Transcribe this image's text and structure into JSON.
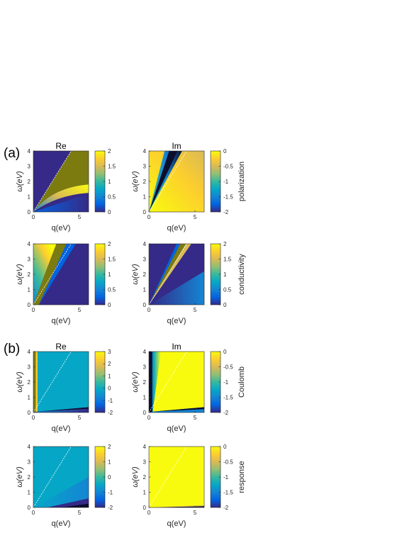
{
  "figure": {
    "panel_a_label": "(a)",
    "panel_b_label": "(b)",
    "column_titles": {
      "a_re": "Re",
      "a_im": "Im",
      "b_re": "Re",
      "b_im": "Im"
    },
    "row_labels": {
      "polarization": "polarization",
      "conductivity": "conductivity",
      "coulomb": "Coulomb",
      "response": "response"
    }
  },
  "colors": {
    "parula": [
      "#352a87",
      "#0363e1",
      "#1485d4",
      "#06a7c6",
      "#38b99e",
      "#92bf73",
      "#d9ba56",
      "#fcce2e",
      "#f9fb0e"
    ],
    "overflow_high": "#7b7b10",
    "overflow_low": "#0d0d2e",
    "light_line": "#ffffff"
  },
  "chart_data": [
    {
      "id": "a-re-polarization",
      "type": "heatmap",
      "title": "Re",
      "xlabel": "q(eV)",
      "ylabel": "ω(eV)",
      "xlim": [
        0,
        6
      ],
      "ylim": [
        0,
        4
      ],
      "xticks": [
        "0",
        "5"
      ],
      "yticks": [
        "0",
        "1",
        "2",
        "3",
        "4"
      ],
      "colorbar": {
        "ticks": [
          "0",
          "0.5",
          "1",
          "1.5",
          "2"
        ],
        "clim": [
          0,
          2
        ]
      }
    },
    {
      "id": "a-im-polarization",
      "type": "heatmap",
      "title": "Im",
      "xlabel": "q(eV)",
      "ylabel": "ω(eV)",
      "xlim": [
        0,
        6
      ],
      "ylim": [
        0,
        4
      ],
      "xticks": [
        "0",
        "5"
      ],
      "yticks": [
        "0",
        "1",
        "2",
        "3",
        "4"
      ],
      "colorbar": {
        "ticks": [
          "0",
          "-0.5",
          "-1",
          "-1.5",
          "-2"
        ],
        "clim": [
          -2,
          0
        ],
        "label": "polarization"
      }
    },
    {
      "id": "a-re-conductivity",
      "type": "heatmap",
      "xlabel": "q(eV)",
      "ylabel": "ω(eV)",
      "xlim": [
        0,
        6
      ],
      "ylim": [
        0,
        4
      ],
      "xticks": [
        "0",
        "5"
      ],
      "yticks": [
        "0",
        "1",
        "2",
        "3",
        "4"
      ],
      "colorbar": {
        "ticks": [
          "0",
          "0.5",
          "1",
          "1.5",
          "2"
        ],
        "clim": [
          0,
          2
        ]
      }
    },
    {
      "id": "a-im-conductivity",
      "type": "heatmap",
      "xlabel": "q(eV)",
      "ylabel": "ω(eV)",
      "xlim": [
        0,
        6
      ],
      "ylim": [
        0,
        4
      ],
      "xticks": [
        "0",
        "5"
      ],
      "yticks": [
        "0",
        "1",
        "2",
        "3",
        "4"
      ],
      "colorbar": {
        "ticks": [
          "0",
          "0.5",
          "1",
          "1.5",
          "2"
        ],
        "clim": [
          0,
          2
        ],
        "label": "conductivity"
      }
    },
    {
      "id": "b-re-coulomb",
      "type": "heatmap",
      "title": "Re",
      "xlabel": "q(eV)",
      "ylabel": "ω(eV)",
      "xlim": [
        0,
        6
      ],
      "ylim": [
        0,
        4
      ],
      "xticks": [
        "0",
        "5"
      ],
      "yticks": [
        "0",
        "1",
        "2",
        "3",
        "4"
      ],
      "colorbar": {
        "ticks": [
          "-2",
          "-1",
          "0",
          "1",
          "2",
          "3"
        ],
        "clim": [
          -2,
          3
        ]
      }
    },
    {
      "id": "b-im-coulomb",
      "type": "heatmap",
      "title": "Im",
      "xlabel": "q(eV)",
      "ylabel": "ω(eV)",
      "xlim": [
        0,
        6
      ],
      "ylim": [
        0,
        4
      ],
      "xticks": [
        "0",
        "5"
      ],
      "yticks": [
        "0",
        "1",
        "2",
        "3",
        "4"
      ],
      "colorbar": {
        "ticks": [
          "0",
          "-0.5",
          "-1",
          "-1.5",
          "-2"
        ],
        "clim": [
          -2,
          0
        ],
        "label": "Coulomb"
      }
    },
    {
      "id": "b-re-response",
      "type": "heatmap",
      "xlabel": "q(eV)",
      "ylabel": "ω(eV)",
      "xlim": [
        0,
        6
      ],
      "ylim": [
        0,
        4
      ],
      "xticks": [
        "0",
        "5"
      ],
      "yticks": [
        "0",
        "1",
        "2",
        "3",
        "4"
      ],
      "colorbar": {
        "ticks": [
          "-2",
          "-1",
          "0",
          "1",
          "2"
        ],
        "clim": [
          -2,
          2
        ]
      }
    },
    {
      "id": "b-im-response",
      "type": "heatmap",
      "xlabel": "q(eV)",
      "ylabel": "ω(eV)",
      "xlim": [
        0,
        6
      ],
      "ylim": [
        0,
        4
      ],
      "xticks": [
        "0",
        "5"
      ],
      "yticks": [
        "0",
        "1",
        "2",
        "3",
        "4"
      ],
      "colorbar": {
        "ticks": [
          "0",
          "-0.5",
          "-1",
          "-1.5",
          "-2"
        ],
        "clim": [
          -2,
          0
        ],
        "label": "response"
      }
    }
  ]
}
